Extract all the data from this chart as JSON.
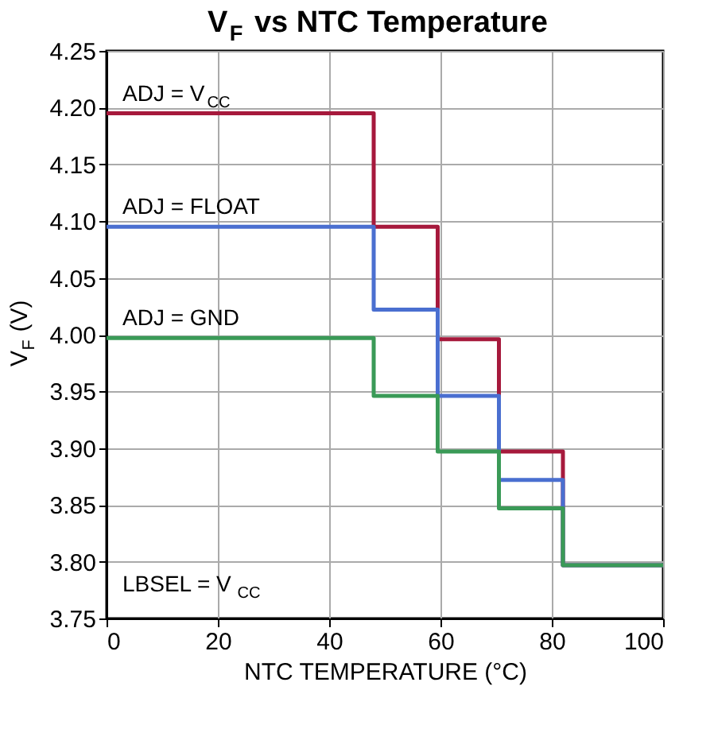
{
  "chart_data": {
    "type": "step",
    "title": "V$_{F}$ vs NTC Temperature",
    "xlabel": "NTC TEMPERATURE (°C)",
    "ylabel": "V$_{F}$ (V)",
    "xlim": [
      0,
      100
    ],
    "xticks": [
      0,
      20,
      40,
      60,
      80,
      100
    ],
    "ylim": [
      3.75,
      4.25
    ],
    "yticks": [
      4.25,
      {
        "value": 4.2,
        "label": "4.20"
      },
      4.15,
      {
        "value": 4.1,
        "label": "4.10"
      },
      4.05,
      {
        "value": 4.0,
        "label": "4.00"
      },
      3.95,
      {
        "value": 3.9,
        "label": "3.90"
      },
      3.85,
      {
        "value": 3.8,
        "label": "3.80"
      },
      3.75
    ],
    "grid": true,
    "legend": false,
    "line_style": "solid",
    "marker": "none",
    "x": [
      0,
      48,
      59.5,
      70.5,
      82,
      100
    ],
    "series": [
      {
        "name": "ADJ = V$_{CC}$",
        "color": "#a6193c",
        "values": [
          4.195,
          4.095,
          3.996,
          3.897,
          3.797,
          3.797
        ]
      },
      {
        "name": "ADJ = FLOAT",
        "color": "#4a6fd0",
        "values": [
          4.095,
          4.022,
          3.946,
          3.872,
          3.797,
          3.797
        ]
      },
      {
        "name": "ADJ = GND",
        "color": "#3a9a57",
        "values": [
          3.997,
          3.946,
          3.897,
          3.847,
          3.797,
          3.797
        ]
      }
    ],
    "annotations": [
      "LBSEL = V$_{CC}$"
    ]
  }
}
